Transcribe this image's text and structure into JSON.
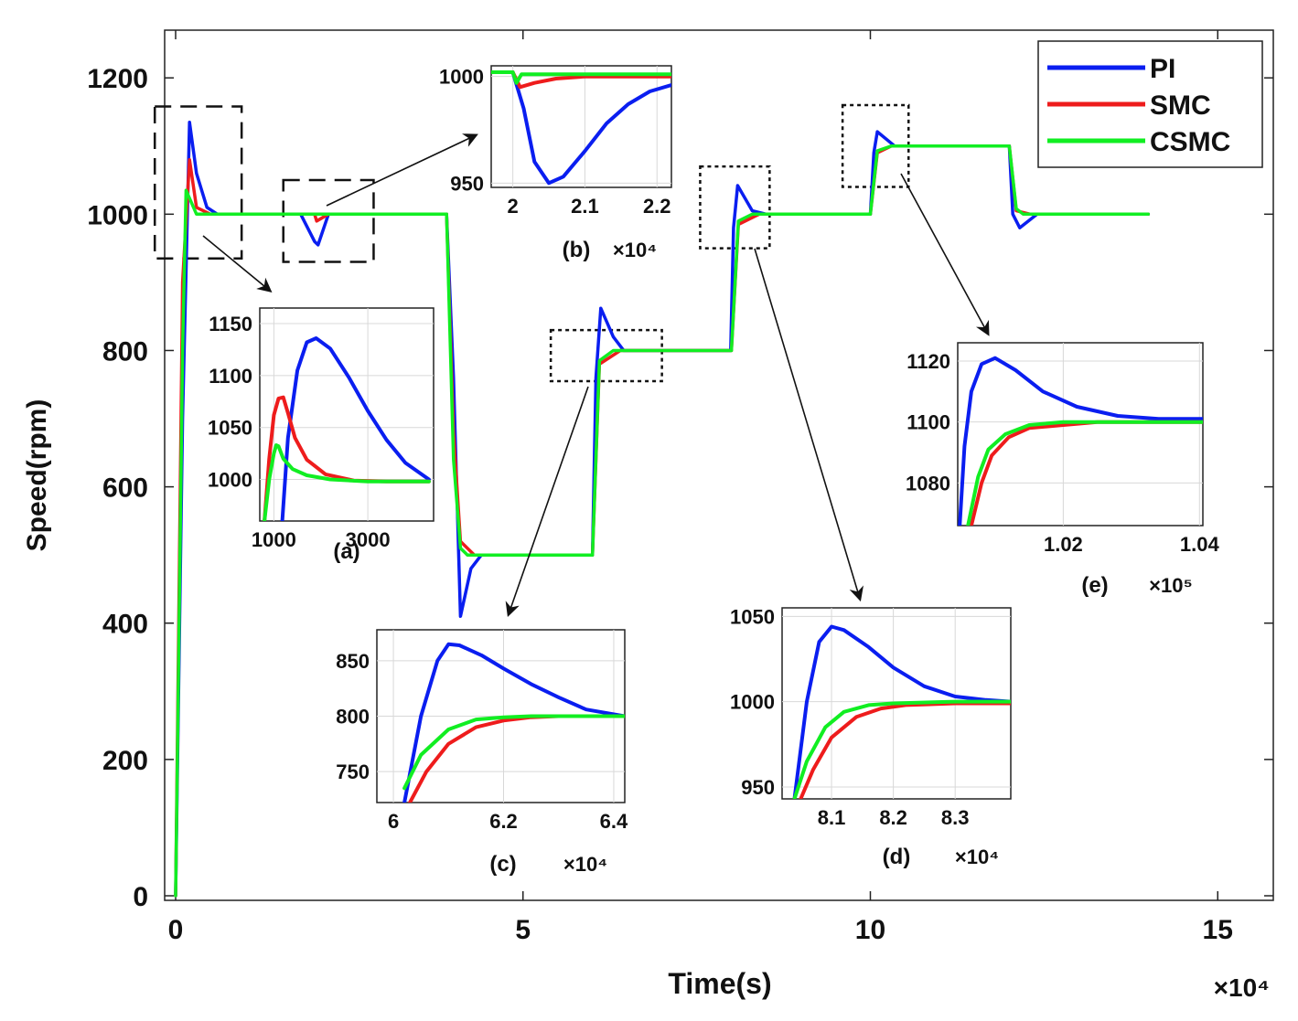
{
  "colors": {
    "PI": "#0a1ef0",
    "SMC": "#ee1c1c",
    "CSMC": "#11ee22",
    "grid": "#d8d8d8",
    "axis": "#222222"
  },
  "chart_data": {
    "type": "line",
    "title": "",
    "xlabel": "Time(s)",
    "ylabel": "Speed(rpm)",
    "x_exponent": "×10⁴",
    "xlim": [
      0,
      15.8
    ],
    "ylim": [
      0,
      1270
    ],
    "xticks": [
      0,
      5,
      10,
      15
    ],
    "yticks": [
      0,
      200,
      400,
      600,
      800,
      1000,
      1200
    ],
    "x_unit_note": "x values in units of 10^4",
    "legend": {
      "position": "top-right",
      "entries": [
        "PI",
        "SMC",
        "CSMC"
      ]
    },
    "series": [
      {
        "name": "PI",
        "x": [
          0,
          0.1,
          0.2,
          0.3,
          0.45,
          0.6,
          1.8,
          2.0,
          2.05,
          2.15,
          2.2,
          3.9,
          4.0,
          4.1,
          4.25,
          4.4,
          6.0,
          6.05,
          6.12,
          6.3,
          6.45,
          7.99,
          8.03,
          8.09,
          8.3,
          8.5,
          10.0,
          10.05,
          10.1,
          10.35,
          12.0,
          12.05,
          12.15,
          12.4,
          14.0
        ],
        "y": [
          0,
          700,
          1135,
          1060,
          1010,
          1000,
          1000,
          960,
          955,
          985,
          1000,
          1000,
          760,
          410,
          480,
          500,
          500,
          760,
          862,
          820,
          800,
          800,
          980,
          1042,
          1005,
          1000,
          1000,
          1090,
          1121,
          1100,
          1100,
          1000,
          980,
          1000,
          1000
        ]
      },
      {
        "name": "SMC",
        "x": [
          0,
          0.1,
          0.2,
          0.3,
          0.5,
          2.0,
          2.03,
          2.2,
          3.9,
          4.0,
          4.1,
          4.3,
          6.0,
          6.1,
          6.4,
          8.0,
          8.1,
          8.4,
          10.0,
          10.1,
          10.3,
          12.0,
          12.1,
          12.3,
          14.0
        ],
        "y": [
          0,
          900,
          1080,
          1010,
          1000,
          1000,
          990,
          1000,
          1000,
          680,
          520,
          500,
          500,
          780,
          800,
          800,
          985,
          1000,
          1000,
          1090,
          1100,
          1100,
          1005,
          1000,
          1000
        ]
      },
      {
        "name": "CSMC",
        "x": [
          0,
          0.1,
          0.15,
          0.3,
          2.0,
          3.9,
          4.0,
          4.1,
          4.2,
          6.0,
          6.1,
          6.3,
          8.0,
          8.1,
          8.3,
          10.0,
          10.1,
          10.3,
          12.0,
          12.1,
          12.2,
          14.0
        ],
        "y": [
          0,
          800,
          1035,
          1000,
          1000,
          1000,
          640,
          510,
          500,
          500,
          785,
          800,
          800,
          990,
          1000,
          1000,
          1093,
          1100,
          1100,
          1008,
          1000,
          1000
        ]
      }
    ],
    "insets": [
      {
        "id": "a",
        "label": "(a)",
        "xticks": [
          1000,
          3000
        ],
        "yticks": [
          1000,
          1050,
          1100,
          1150
        ],
        "xlim": [
          700,
          4400
        ],
        "ylim": [
          960,
          1165
        ],
        "exponent": "",
        "series": [
          {
            "name": "PI",
            "x": [
              1180,
              1300,
              1500,
              1700,
              1900,
              2200,
              2600,
              3000,
              3400,
              3800,
              4300
            ],
            "y": [
              960,
              1040,
              1105,
              1132,
              1136,
              1126,
              1098,
              1066,
              1038,
              1016,
              1000
            ]
          },
          {
            "name": "SMC",
            "x": [
              800,
              900,
              1000,
              1100,
              1200,
              1300,
              1450,
              1700,
              2100,
              2700,
              3400,
              4300
            ],
            "y": [
              960,
              1020,
              1062,
              1078,
              1079,
              1064,
              1040,
              1019,
              1005,
              999,
              998,
              998
            ]
          },
          {
            "name": "CSMC",
            "x": [
              800,
              900,
              1000,
              1050,
              1100,
              1200,
              1400,
              1700,
              2200,
              3000,
              3800,
              4300
            ],
            "y": [
              960,
              1000,
              1025,
              1033,
              1032,
              1020,
              1010,
              1004,
              1000,
              998,
              998,
              998
            ]
          }
        ]
      },
      {
        "id": "b",
        "label": "(b)",
        "xticks": [
          2,
          2.1,
          2.2
        ],
        "yticks": [
          950,
          1000
        ],
        "xlim": [
          1.97,
          2.22
        ],
        "ylim": [
          948,
          1005
        ],
        "exponent": "×10⁴",
        "series": [
          {
            "name": "PI",
            "x": [
              1.97,
              2.0,
              2.015,
              2.03,
              2.05,
              2.07,
              2.1,
              2.13,
              2.16,
              2.19,
              2.22
            ],
            "y": [
              1002,
              1002,
              985,
              960,
              950,
              953,
              965,
              978,
              987,
              993,
              996
            ]
          },
          {
            "name": "SMC",
            "x": [
              1.97,
              2.0,
              2.01,
              2.03,
              2.06,
              2.1,
              2.15,
              2.22
            ],
            "y": [
              1002,
              1002,
              995,
              997,
              999,
              1000,
              1000,
              1000
            ]
          },
          {
            "name": "CSMC",
            "x": [
              1.97,
              2.0,
              2.005,
              2.012,
              2.03,
              2.1,
              2.22
            ],
            "y": [
              1002,
              1002,
              997,
              1001,
              1001,
              1001,
              1001
            ]
          }
        ]
      },
      {
        "id": "c",
        "label": "(c)",
        "xticks": [
          6,
          6.2,
          6.4
        ],
        "yticks": [
          750,
          800,
          850
        ],
        "xlim": [
          5.97,
          6.42
        ],
        "ylim": [
          722,
          878
        ],
        "exponent": "×10⁴",
        "series": [
          {
            "name": "PI",
            "x": [
              6.02,
              6.05,
              6.08,
              6.1,
              6.12,
              6.16,
              6.2,
              6.25,
              6.3,
              6.35,
              6.42
            ],
            "y": [
              722,
              800,
              850,
              865,
              864,
              855,
              843,
              829,
              817,
              806,
              800
            ]
          },
          {
            "name": "SMC",
            "x": [
              6.03,
              6.06,
              6.1,
              6.15,
              6.2,
              6.25,
              6.3,
              6.42
            ],
            "y": [
              722,
              750,
              775,
              790,
              796,
              799,
              800,
              800
            ]
          },
          {
            "name": "CSMC",
            "x": [
              6.02,
              6.05,
              6.1,
              6.15,
              6.2,
              6.25,
              6.3,
              6.42
            ],
            "y": [
              735,
              765,
              788,
              797,
              799,
              800,
              800,
              800
            ]
          }
        ]
      },
      {
        "id": "d",
        "label": "(d)",
        "xticks": [
          8.1,
          8.2,
          8.3
        ],
        "yticks": [
          950,
          1000,
          1050
        ],
        "xlim": [
          8.02,
          8.39
        ],
        "ylim": [
          943,
          1055
        ],
        "exponent": "×10⁴",
        "series": [
          {
            "name": "PI",
            "x": [
              8.04,
              8.06,
              8.08,
              8.1,
              8.12,
              8.16,
              8.2,
              8.25,
              8.3,
              8.35,
              8.39
            ],
            "y": [
              943,
              1000,
              1035,
              1044,
              1042,
              1032,
              1020,
              1009,
              1003,
              1001,
              1000
            ]
          },
          {
            "name": "SMC",
            "x": [
              8.05,
              8.07,
              8.1,
              8.14,
              8.18,
              8.22,
              8.3,
              8.39
            ],
            "y": [
              943,
              960,
              979,
              991,
              996,
              998,
              999,
              999
            ]
          },
          {
            "name": "CSMC",
            "x": [
              8.04,
              8.06,
              8.09,
              8.12,
              8.16,
              8.2,
              8.3,
              8.39
            ],
            "y": [
              943,
              965,
              985,
              994,
              998,
              999,
              1000,
              1000
            ]
          }
        ]
      },
      {
        "id": "e",
        "label": "(e)",
        "xticks": [
          1.02,
          1.04
        ],
        "yticks": [
          1080,
          1100,
          1120
        ],
        "xlim": [
          1.0045,
          1.0405
        ],
        "ylim": [
          1066,
          1126
        ],
        "exponent": "×10⁵",
        "series": [
          {
            "name": "PI",
            "x": [
              1.0048,
              1.0055,
              1.0065,
              1.008,
              1.01,
              1.013,
              1.017,
              1.022,
              1.028,
              1.034,
              1.0405
            ],
            "y": [
              1066,
              1092,
              1110,
              1119,
              1121,
              1117,
              1110,
              1105,
              1102,
              1101,
              1101
            ]
          },
          {
            "name": "SMC",
            "x": [
              1.0065,
              1.008,
              1.0095,
              1.012,
              1.015,
              1.02,
              1.025,
              1.03,
              1.0405
            ],
            "y": [
              1066,
              1080,
              1089,
              1095,
              1098,
              1099,
              1100,
              1100,
              1100
            ]
          },
          {
            "name": "CSMC",
            "x": [
              1.006,
              1.0075,
              1.009,
              1.0115,
              1.015,
              1.02,
              1.03,
              1.0405
            ],
            "y": [
              1066,
              1082,
              1091,
              1096,
              1099,
              1100,
              1100,
              1100
            ]
          }
        ]
      }
    ]
  }
}
